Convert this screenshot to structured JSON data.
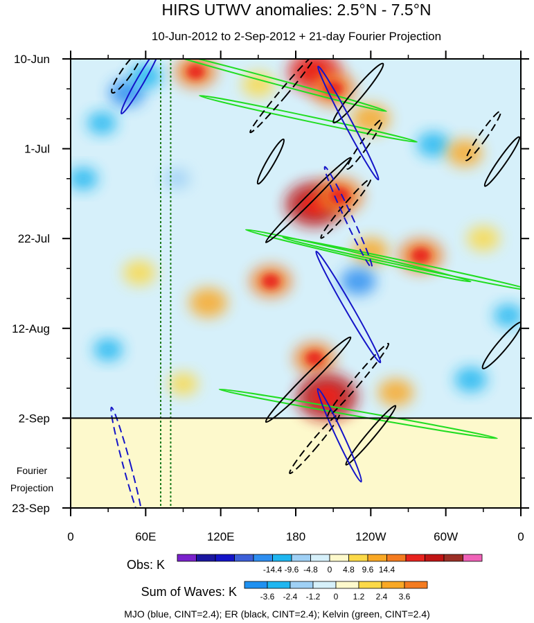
{
  "chart_data": {
    "type": "heatmap",
    "title": "HIRS UTWV anomalies: 2.5°N - 7.5°N",
    "subtitle": "10-Jun-2012 to 2-Sep-2012 + 21-day Fourier Projection",
    "x_ticks": [
      {
        "lon": 0,
        "label": "0"
      },
      {
        "lon": 60,
        "label": "60E"
      },
      {
        "lon": 120,
        "label": "120E"
      },
      {
        "lon": 180,
        "label": "180"
      },
      {
        "lon": 240,
        "label": "120W"
      },
      {
        "lon": 300,
        "label": "60W"
      },
      {
        "lon": 360,
        "label": "0"
      }
    ],
    "xlim": [
      0,
      360
    ],
    "y_ticks": [
      {
        "day": 0,
        "label": "10-Jun"
      },
      {
        "day": 21,
        "label": "1-Jul"
      },
      {
        "day": 42,
        "label": "22-Jul"
      },
      {
        "day": 63,
        "label": "12-Aug"
      },
      {
        "day": 84,
        "label": "2-Sep"
      },
      {
        "day": 105,
        "label": "23-Sep"
      }
    ],
    "ylim_days": [
      0,
      105
    ],
    "forecast_start_day": 84,
    "forecast_label": [
      "Fourier",
      "Projection"
    ],
    "reference_lines_lon": [
      72,
      80
    ],
    "obs_colorbar": {
      "label": "Obs: K",
      "colors": [
        "#7a22cc",
        "#1a16a0",
        "#1414c8",
        "#3c5fd8",
        "#2e8ef0",
        "#1fb6f0",
        "#9fd0f5",
        "#d6f0fa",
        "#fdf9cc",
        "#fbd948",
        "#f9a825",
        "#f47b20",
        "#e8231e",
        "#c01414",
        "#9b2f26",
        "#f062b8"
      ],
      "tick_labels": [
        "-14.4",
        "-9.6",
        "-4.8",
        "0",
        "4.8",
        "9.6",
        "14.4"
      ]
    },
    "waves_colorbar": {
      "label": "Sum of Waves: K",
      "colors": [
        "#1e90f0",
        "#1fb6f0",
        "#9fd0f5",
        "#d6f0fa",
        "#fdf9cc",
        "#fbd948",
        "#f9a825",
        "#f47b20"
      ],
      "tick_labels": [
        "-3.6",
        "-2.4",
        "-1.2",
        "0",
        "1.2",
        "2.4",
        "3.6"
      ]
    },
    "footer": "MJO (blue, CINT=2.4); ER (black, CINT=2.4); Kelvin (green, CINT=2.4)",
    "contours": {
      "MJO": {
        "color": "#1414c8",
        "cint": 2.4
      },
      "ER": {
        "color": "#000000",
        "cint": 2.4
      },
      "Kelvin": {
        "color": "#22dd22",
        "cint": 2.4
      }
    },
    "anomaly_blobs": [
      {
        "lon": 45,
        "day": 8,
        "v": -6
      },
      {
        "lon": 25,
        "day": 15,
        "v": -4
      },
      {
        "lon": 60,
        "day": 4,
        "v": -5
      },
      {
        "lon": 100,
        "day": 3,
        "v": 8
      },
      {
        "lon": 150,
        "day": 6,
        "v": 5
      },
      {
        "lon": 195,
        "day": 3,
        "v": 12
      },
      {
        "lon": 210,
        "day": 7,
        "v": 9
      },
      {
        "lon": 240,
        "day": 14,
        "v": 7
      },
      {
        "lon": 290,
        "day": 20,
        "v": -5
      },
      {
        "lon": 315,
        "day": 22,
        "v": 6
      },
      {
        "lon": 10,
        "day": 28,
        "v": -4
      },
      {
        "lon": 85,
        "day": 28,
        "v": -3
      },
      {
        "lon": 195,
        "day": 34,
        "v": 14
      },
      {
        "lon": 215,
        "day": 32,
        "v": 10
      },
      {
        "lon": 240,
        "day": 45,
        "v": 6
      },
      {
        "lon": 280,
        "day": 46,
        "v": 9
      },
      {
        "lon": 160,
        "day": 52,
        "v": 8
      },
      {
        "lon": 230,
        "day": 52,
        "v": -6
      },
      {
        "lon": 330,
        "day": 42,
        "v": 5
      },
      {
        "lon": 55,
        "day": 50,
        "v": 5
      },
      {
        "lon": 110,
        "day": 57,
        "v": 7
      },
      {
        "lon": 350,
        "day": 60,
        "v": -4
      },
      {
        "lon": 195,
        "day": 70,
        "v": 8
      },
      {
        "lon": 205,
        "day": 79,
        "v": 15
      },
      {
        "lon": 260,
        "day": 78,
        "v": 6
      },
      {
        "lon": 320,
        "day": 75,
        "v": -5
      },
      {
        "lon": 90,
        "day": 76,
        "v": 4
      },
      {
        "lon": 30,
        "day": 68,
        "v": -4
      }
    ],
    "mjo_contours": [
      {
        "lon": 56,
        "day": 5,
        "rx": 3,
        "ry": 9,
        "rot": 30,
        "dashed": false
      },
      {
        "lon": 222,
        "day": 15,
        "rx": 3,
        "ry": 15,
        "rot": -28,
        "dashed": false
      },
      {
        "lon": 222,
        "day": 37,
        "rx": 3,
        "ry": 13,
        "rot": -25,
        "dashed": true
      },
      {
        "lon": 222,
        "day": 58,
        "rx": 3,
        "ry": 15,
        "rot": -30,
        "dashed": false
      },
      {
        "lon": 215,
        "day": 88,
        "rx": 3,
        "ry": 12,
        "rot": -25,
        "dashed": false
      },
      {
        "lon": 45,
        "day": 95,
        "rx": 3,
        "ry": 14,
        "rot": -15,
        "dashed": true
      }
    ],
    "er_contours": [
      {
        "lon": 45,
        "day": 3,
        "rx": 4,
        "ry": 6,
        "rot": 35,
        "dashed": true
      },
      {
        "lon": 170,
        "day": 8,
        "rx": 3,
        "ry": 12,
        "rot": 40,
        "dashed": true
      },
      {
        "lon": 230,
        "day": 8,
        "rx": 4,
        "ry": 9,
        "rot": 40,
        "dashed": false
      },
      {
        "lon": 160,
        "day": 24,
        "rx": 3,
        "ry": 6,
        "rot": 30,
        "dashed": false
      },
      {
        "lon": 235,
        "day": 20,
        "rx": 3,
        "ry": 7,
        "rot": 35,
        "dashed": true
      },
      {
        "lon": 330,
        "day": 18,
        "rx": 3,
        "ry": 7,
        "rot": 35,
        "dashed": true
      },
      {
        "lon": 345,
        "day": 24,
        "rx": 3,
        "ry": 7,
        "rot": 35,
        "dashed": false
      },
      {
        "lon": 190,
        "day": 33,
        "rx": 3,
        "ry": 14,
        "rot": 45,
        "dashed": false
      },
      {
        "lon": 220,
        "day": 35,
        "rx": 3,
        "ry": 9,
        "rot": 40,
        "dashed": true
      },
      {
        "lon": 190,
        "day": 75,
        "rx": 4,
        "ry": 14,
        "rot": 45,
        "dashed": false
      },
      {
        "lon": 230,
        "day": 75,
        "rx": 3,
        "ry": 11,
        "rot": 40,
        "dashed": true
      },
      {
        "lon": 345,
        "day": 67,
        "rx": 4,
        "ry": 7,
        "rot": 40,
        "dashed": false
      },
      {
        "lon": 195,
        "day": 90,
        "rx": 3,
        "ry": 9,
        "rot": 40,
        "dashed": true
      },
      {
        "lon": 240,
        "day": 88,
        "rx": 3,
        "ry": 9,
        "rot": 40,
        "dashed": false
      }
    ],
    "kelvin_contours": [
      {
        "lon": 160,
        "day": 5,
        "rx": 2,
        "ry": 28,
        "rot": -75,
        "dashed": false
      },
      {
        "lon": 190,
        "day": 14,
        "rx": 2,
        "ry": 26,
        "rot": -78,
        "dashed": false
      },
      {
        "lon": 230,
        "day": 46,
        "rx": 2,
        "ry": 27,
        "rot": -77,
        "dashed": false
      },
      {
        "lon": 270,
        "day": 48,
        "rx": 2,
        "ry": 30,
        "rot": -78,
        "dashed": false
      },
      {
        "lon": 230,
        "day": 83,
        "rx": 2,
        "ry": 33,
        "rot": -80,
        "dashed": false
      }
    ]
  }
}
